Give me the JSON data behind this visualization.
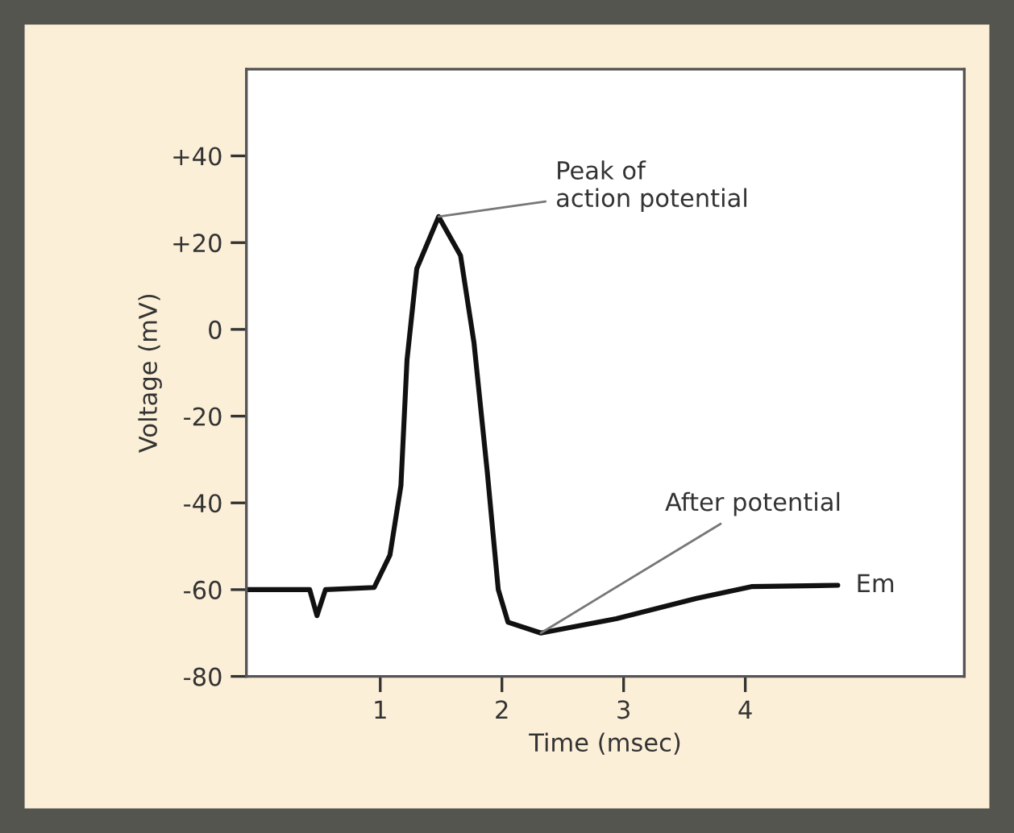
{
  "chart_data": {
    "type": "line",
    "xlabel": "Time (msec)",
    "ylabel": "Voltage (mV)",
    "x": [
      -0.1,
      0.42,
      0.48,
      0.55,
      0.95,
      1.08,
      1.17,
      1.22,
      1.3,
      1.48,
      1.66,
      1.77,
      1.88,
      1.97,
      2.05,
      2.32,
      2.94,
      3.6,
      4.05,
      4.76
    ],
    "series": [
      {
        "color": "#111111",
        "values": [
          -60,
          -60,
          -66,
          -60,
          -59.5,
          -52,
          -36,
          -7,
          14,
          26,
          17,
          -3,
          -33,
          -60,
          -67.5,
          -70,
          -66.7,
          -62,
          -59.3,
          -59
        ]
      }
    ],
    "xlim": [
      -0.1,
      5.8
    ],
    "xticks": [
      1,
      2,
      3,
      4
    ],
    "ylim": [
      -80,
      60
    ],
    "yticks": [
      {
        "value": 40,
        "label": "+40"
      },
      {
        "value": 20,
        "label": "+20"
      },
      0,
      -20,
      -40,
      -60,
      -80
    ],
    "grid": false,
    "marker": "none",
    "line_style": "solid",
    "annotations": [
      {
        "text": "Peak of\naction potential",
        "x": 1.48,
        "y": 26
      },
      {
        "text": "After potential",
        "x": 2.32,
        "y": -70
      },
      {
        "text": "Em",
        "x": 4.76,
        "y": -59
      }
    ]
  }
}
